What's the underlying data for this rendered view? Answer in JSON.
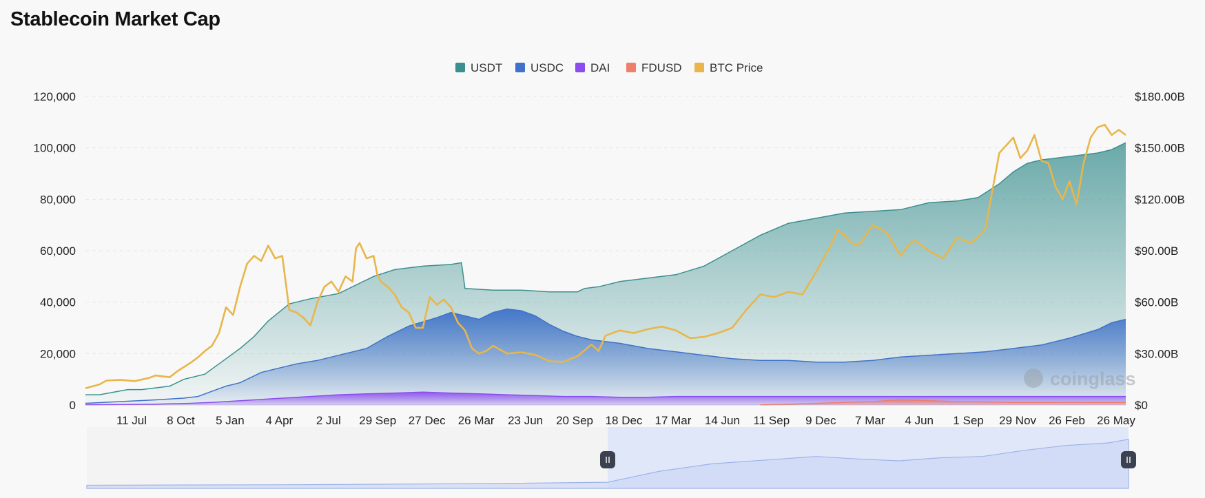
{
  "page": {
    "title": "Stablecoin Market Cap"
  },
  "watermark": "coinglass",
  "colors": {
    "USDT": "#3b8f8f",
    "USDC": "#3f72c8",
    "DAI": "#8b4dee",
    "FDUSD": "#ee7f6a",
    "BTC Price": "#e8b64a",
    "grid": "#e6e6e6",
    "navigator_fill": "#dde5fa"
  },
  "chart_data": {
    "type": "area",
    "legend": [
      "USDT",
      "USDC",
      "DAI",
      "FDUSD",
      "BTC Price"
    ],
    "legend_position": "top-center",
    "grid": true,
    "x_tick_labels": [
      "11 Jul",
      "8 Oct",
      "5 Jan",
      "4 Apr",
      "2 Jul",
      "29 Sep",
      "27 Dec",
      "26 Mar",
      "23 Jun",
      "20 Sep",
      "18 Dec",
      "17 Mar",
      "14 Jun",
      "11 Sep",
      "9 Dec",
      "7 Mar",
      "4 Jun",
      "1 Sep",
      "29 Nov",
      "26 Feb",
      "26 May"
    ],
    "y_left": {
      "ticks": [
        "0",
        "20,000",
        "40,000",
        "60,000",
        "80,000",
        "100,000",
        "120,000"
      ],
      "range": [
        0,
        120000
      ],
      "series": "BTC Price"
    },
    "y_right": {
      "ticks": [
        "$0",
        "$30.00B",
        "$60.00B",
        "$90.00B",
        "$120.00B",
        "$150.00B",
        "$180.00B"
      ],
      "range": [
        0,
        180
      ],
      "unit": "B USD",
      "series": "stablecoins (stacked)"
    },
    "stacking": "cumulative",
    "series": [
      {
        "name": "USDT",
        "axis": "right",
        "points": [
          [
            0,
            6
          ],
          [
            0.02,
            6
          ],
          [
            0.06,
            9
          ],
          [
            0.08,
            9
          ],
          [
            0.12,
            11
          ],
          [
            0.14,
            15
          ],
          [
            0.17,
            18
          ],
          [
            0.18,
            21
          ],
          [
            0.2,
            27
          ],
          [
            0.22,
            33
          ],
          [
            0.24,
            40
          ],
          [
            0.26,
            49
          ],
          [
            0.29,
            59
          ],
          [
            0.32,
            62
          ],
          [
            0.36,
            65
          ],
          [
            0.41,
            75
          ],
          [
            0.44,
            79
          ],
          [
            0.48,
            81
          ],
          [
            0.52,
            82
          ],
          [
            0.535,
            83
          ],
          [
            0.54,
            68
          ],
          [
            0.58,
            67
          ],
          [
            0.62,
            67
          ],
          [
            0.66,
            66
          ],
          [
            0.7,
            66
          ],
          [
            0.71,
            68
          ],
          [
            0.73,
            69
          ],
          [
            0.74,
            70
          ],
          [
            0.76,
            72
          ],
          [
            0.8,
            74
          ],
          [
            0.84,
            76
          ],
          [
            0.88,
            81
          ],
          [
            0.92,
            90
          ],
          [
            0.96,
            99
          ],
          [
            1.0,
            106
          ],
          [
            1.04,
            109
          ],
          [
            1.08,
            112
          ],
          [
            1.12,
            113
          ],
          [
            1.16,
            114
          ],
          [
            1.2,
            118
          ],
          [
            1.24,
            119
          ],
          [
            1.27,
            121
          ],
          [
            1.3,
            129
          ],
          [
            1.32,
            136
          ],
          [
            1.34,
            141
          ],
          [
            1.36,
            143
          ],
          [
            1.38,
            144
          ],
          [
            1.4,
            145
          ],
          [
            1.42,
            146
          ],
          [
            1.44,
            147
          ],
          [
            1.46,
            149
          ],
          [
            1.48,
            153
          ]
        ]
      },
      {
        "name": "USDC",
        "axis": "right",
        "points": [
          [
            0,
            1
          ],
          [
            0.05,
            2
          ],
          [
            0.1,
            3
          ],
          [
            0.14,
            4
          ],
          [
            0.16,
            5
          ],
          [
            0.18,
            8
          ],
          [
            0.2,
            11
          ],
          [
            0.22,
            13
          ],
          [
            0.25,
            19
          ],
          [
            0.27,
            21
          ],
          [
            0.3,
            24
          ],
          [
            0.33,
            26
          ],
          [
            0.36,
            29
          ],
          [
            0.4,
            33
          ],
          [
            0.43,
            40
          ],
          [
            0.46,
            46
          ],
          [
            0.5,
            51
          ],
          [
            0.52,
            54
          ],
          [
            0.54,
            52
          ],
          [
            0.56,
            50
          ],
          [
            0.58,
            54
          ],
          [
            0.6,
            56
          ],
          [
            0.62,
            55
          ],
          [
            0.64,
            52
          ],
          [
            0.66,
            47
          ],
          [
            0.68,
            43
          ],
          [
            0.7,
            40
          ],
          [
            0.72,
            38
          ],
          [
            0.76,
            36
          ],
          [
            0.8,
            33
          ],
          [
            0.84,
            31
          ],
          [
            0.88,
            29
          ],
          [
            0.92,
            27
          ],
          [
            0.96,
            26
          ],
          [
            1.0,
            26
          ],
          [
            1.04,
            25
          ],
          [
            1.08,
            25
          ],
          [
            1.12,
            26
          ],
          [
            1.16,
            28
          ],
          [
            1.2,
            29
          ],
          [
            1.24,
            30
          ],
          [
            1.28,
            31
          ],
          [
            1.32,
            33
          ],
          [
            1.36,
            35
          ],
          [
            1.4,
            39
          ],
          [
            1.44,
            44
          ],
          [
            1.46,
            48
          ],
          [
            1.48,
            50
          ]
        ]
      },
      {
        "name": "DAI",
        "axis": "right",
        "points": [
          [
            0,
            0.2
          ],
          [
            0.05,
            0.3
          ],
          [
            0.1,
            0.5
          ],
          [
            0.15,
            1
          ],
          [
            0.18,
            1.5
          ],
          [
            0.2,
            2
          ],
          [
            0.24,
            3
          ],
          [
            0.28,
            4
          ],
          [
            0.32,
            5
          ],
          [
            0.36,
            6
          ],
          [
            0.4,
            6.5
          ],
          [
            0.44,
            7
          ],
          [
            0.48,
            7.5
          ],
          [
            0.52,
            7
          ],
          [
            0.56,
            6.5
          ],
          [
            0.6,
            6
          ],
          [
            0.64,
            5.5
          ],
          [
            0.68,
            5
          ],
          [
            0.72,
            5
          ],
          [
            0.76,
            4.5
          ],
          [
            0.8,
            4.5
          ],
          [
            0.84,
            5
          ],
          [
            0.88,
            5
          ],
          [
            0.92,
            5
          ],
          [
            0.96,
            5
          ],
          [
            1.0,
            5
          ],
          [
            1.04,
            5
          ],
          [
            1.08,
            5
          ],
          [
            1.12,
            5
          ],
          [
            1.16,
            5
          ],
          [
            1.2,
            5
          ],
          [
            1.24,
            5
          ],
          [
            1.28,
            5
          ],
          [
            1.32,
            5
          ],
          [
            1.36,
            5
          ],
          [
            1.4,
            5
          ],
          [
            1.44,
            5
          ],
          [
            1.48,
            5
          ]
        ]
      },
      {
        "name": "FDUSD",
        "axis": "right",
        "points": [
          [
            0.96,
            0.1
          ],
          [
            1.0,
            0.5
          ],
          [
            1.04,
            1
          ],
          [
            1.08,
            1.5
          ],
          [
            1.12,
            2
          ],
          [
            1.16,
            3
          ],
          [
            1.2,
            2.5
          ],
          [
            1.24,
            2
          ],
          [
            1.28,
            1.8
          ],
          [
            1.32,
            1.5
          ],
          [
            1.36,
            1.5
          ],
          [
            1.4,
            1.6
          ],
          [
            1.44,
            1.5
          ],
          [
            1.48,
            1.5
          ]
        ]
      },
      {
        "name": "BTC Price",
        "axis": "left",
        "points": [
          [
            0,
            6500
          ],
          [
            0.02,
            8000
          ],
          [
            0.03,
            9500
          ],
          [
            0.05,
            9800
          ],
          [
            0.07,
            9300
          ],
          [
            0.09,
            10500
          ],
          [
            0.1,
            11500
          ],
          [
            0.12,
            10800
          ],
          [
            0.13,
            13000
          ],
          [
            0.15,
            16500
          ],
          [
            0.16,
            18500
          ],
          [
            0.17,
            21000
          ],
          [
            0.18,
            23000
          ],
          [
            0.19,
            28000
          ],
          [
            0.2,
            38000
          ],
          [
            0.21,
            35000
          ],
          [
            0.22,
            46000
          ],
          [
            0.23,
            55000
          ],
          [
            0.24,
            58000
          ],
          [
            0.25,
            56000
          ],
          [
            0.26,
            62000
          ],
          [
            0.27,
            57000
          ],
          [
            0.28,
            58000
          ],
          [
            0.29,
            37000
          ],
          [
            0.3,
            36000
          ],
          [
            0.31,
            34000
          ],
          [
            0.32,
            31000
          ],
          [
            0.33,
            40000
          ],
          [
            0.34,
            46000
          ],
          [
            0.35,
            48000
          ],
          [
            0.36,
            44000
          ],
          [
            0.37,
            50000
          ],
          [
            0.38,
            48000
          ],
          [
            0.385,
            61000
          ],
          [
            0.39,
            63000
          ],
          [
            0.4,
            57000
          ],
          [
            0.41,
            58000
          ],
          [
            0.415,
            51000
          ],
          [
            0.42,
            48000
          ],
          [
            0.43,
            46000
          ],
          [
            0.44,
            43000
          ],
          [
            0.45,
            38000
          ],
          [
            0.46,
            36000
          ],
          [
            0.47,
            30000
          ],
          [
            0.48,
            30000
          ],
          [
            0.49,
            42000
          ],
          [
            0.5,
            39000
          ],
          [
            0.51,
            41000
          ],
          [
            0.52,
            38000
          ],
          [
            0.53,
            32000
          ],
          [
            0.54,
            29000
          ],
          [
            0.55,
            22000
          ],
          [
            0.56,
            20000
          ],
          [
            0.57,
            21000
          ],
          [
            0.58,
            23000
          ],
          [
            0.6,
            20000
          ],
          [
            0.62,
            20500
          ],
          [
            0.64,
            19500
          ],
          [
            0.66,
            17000
          ],
          [
            0.68,
            16800
          ],
          [
            0.7,
            19000
          ],
          [
            0.72,
            23500
          ],
          [
            0.73,
            21000
          ],
          [
            0.74,
            27000
          ],
          [
            0.76,
            29000
          ],
          [
            0.78,
            28000
          ],
          [
            0.8,
            29500
          ],
          [
            0.82,
            30500
          ],
          [
            0.84,
            29000
          ],
          [
            0.86,
            26000
          ],
          [
            0.88,
            26500
          ],
          [
            0.9,
            28000
          ],
          [
            0.92,
            30000
          ],
          [
            0.94,
            37000
          ],
          [
            0.96,
            43000
          ],
          [
            0.98,
            42000
          ],
          [
            1.0,
            44000
          ],
          [
            1.02,
            43000
          ],
          [
            1.04,
            52000
          ],
          [
            1.06,
            62000
          ],
          [
            1.07,
            68000
          ],
          [
            1.08,
            66000
          ],
          [
            1.09,
            63000
          ],
          [
            1.1,
            62000
          ],
          [
            1.12,
            70000
          ],
          [
            1.14,
            67000
          ],
          [
            1.16,
            58000
          ],
          [
            1.17,
            62000
          ],
          [
            1.18,
            64000
          ],
          [
            1.2,
            60000
          ],
          [
            1.22,
            57000
          ],
          [
            1.24,
            65000
          ],
          [
            1.26,
            63000
          ],
          [
            1.28,
            68000
          ],
          [
            1.3,
            98000
          ],
          [
            1.32,
            104000
          ],
          [
            1.33,
            96000
          ],
          [
            1.34,
            99000
          ],
          [
            1.35,
            105000
          ],
          [
            1.36,
            95000
          ],
          [
            1.37,
            94000
          ],
          [
            1.38,
            85000
          ],
          [
            1.39,
            80000
          ],
          [
            1.4,
            87000
          ],
          [
            1.41,
            78000
          ],
          [
            1.42,
            94000
          ],
          [
            1.43,
            104000
          ],
          [
            1.44,
            108000
          ],
          [
            1.45,
            109000
          ],
          [
            1.46,
            105000
          ],
          [
            1.47,
            107000
          ],
          [
            1.48,
            105000
          ]
        ]
      }
    ],
    "navigator": {
      "points": [
        [
          0,
          0.05
        ],
        [
          0.2,
          0.06
        ],
        [
          0.4,
          0.08
        ],
        [
          0.5,
          0.1
        ],
        [
          0.55,
          0.28
        ],
        [
          0.6,
          0.4
        ],
        [
          0.7,
          0.52
        ],
        [
          0.74,
          0.48
        ],
        [
          0.78,
          0.45
        ],
        [
          0.82,
          0.5
        ],
        [
          0.86,
          0.52
        ],
        [
          0.9,
          0.62
        ],
        [
          0.94,
          0.7
        ],
        [
          0.98,
          0.74
        ],
        [
          1.0,
          0.8
        ]
      ],
      "selected_range": [
        0.5,
        1.0
      ]
    }
  }
}
